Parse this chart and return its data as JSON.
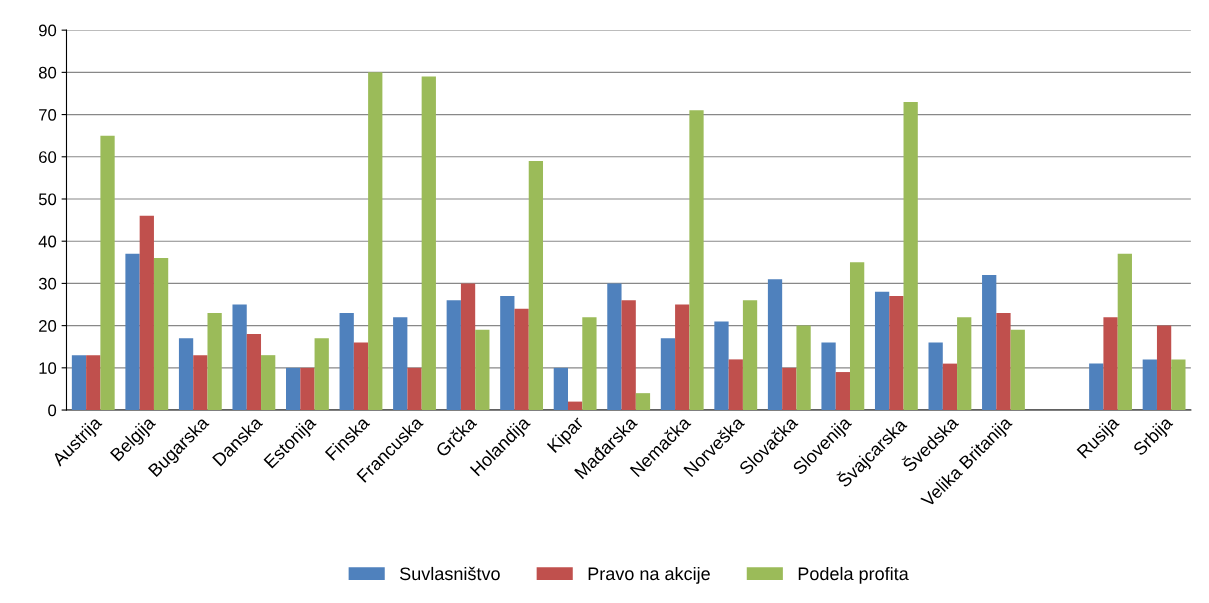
{
  "chart_data": {
    "type": "bar",
    "categories": [
      "Austrija",
      "Belgija",
      "Bugarska",
      "Danska",
      "Estonija",
      "Finska",
      "Francuska",
      "Grčka",
      "Holandija",
      "Kipar",
      "Mađarska",
      "Nemačka",
      "Norveška",
      "Slovačka",
      "Slovenija",
      "Švajcarska",
      "Švedska",
      "Velika Britanija",
      null,
      "Rusija",
      "Srbija"
    ],
    "series": [
      {
        "name": "Suvlasništvo",
        "color": "#4f81bd",
        "values": [
          13,
          37,
          17,
          25,
          10,
          23,
          22,
          26,
          27,
          10,
          30,
          17,
          21,
          31,
          16,
          28,
          16,
          32,
          null,
          11,
          12
        ]
      },
      {
        "name": "Pravo na akcije",
        "color": "#c0504d",
        "values": [
          13,
          46,
          13,
          18,
          10,
          16,
          10,
          30,
          24,
          2,
          26,
          25,
          12,
          10,
          9,
          27,
          11,
          23,
          null,
          22,
          20
        ]
      },
      {
        "name": "Podela profita",
        "color": "#9bbb59",
        "values": [
          65,
          36,
          23,
          13,
          17,
          80,
          79,
          19,
          59,
          22,
          4,
          71,
          26,
          20,
          35,
          73,
          22,
          19,
          null,
          37,
          12
        ]
      }
    ],
    "ylim": [
      0,
      90
    ],
    "yticks": [
      0,
      10,
      20,
      30,
      40,
      50,
      60,
      70,
      80,
      90
    ],
    "grid": "y",
    "legend": "bottom"
  }
}
